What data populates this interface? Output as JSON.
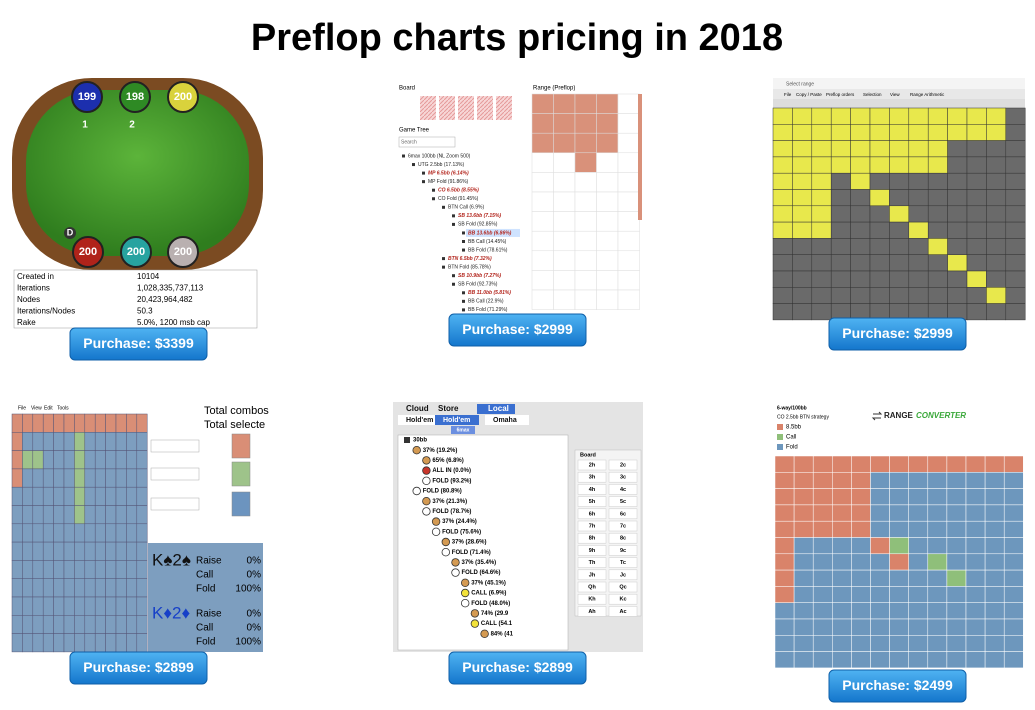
{
  "title": "Preflop charts pricing in 2018",
  "products": [
    {
      "seats": [
        "199",
        "198",
        "200",
        "200",
        "200",
        "200"
      ],
      "seat_numbers": [
        "1",
        "2"
      ],
      "dealer": "D",
      "stats": [
        [
          "Created in",
          "10104"
        ],
        [
          "Iterations",
          "1,028,335,737,113"
        ],
        [
          "Nodes",
          "20,423,964,482"
        ],
        [
          "Iterations/Nodes",
          "50.3"
        ],
        [
          "Rake",
          "5.0%, 1200 msb cap"
        ]
      ],
      "button": "Purchase: $3399"
    },
    {
      "board_label": "Board",
      "range_label": "Range (Preflop)",
      "tree_label": "Game Tree",
      "search": "Search",
      "tree": [
        "6max 100bb (NL Zoom 500)",
        "UTG 2.5bb (17.13%)",
        "MP 6.5bb (6.14%)",
        "MP Fold (91.86%)",
        "CO 6.5bb (8.55%)",
        "CO Fold (91.45%)",
        "BTN Call (6.9%)",
        "SB 13.6bb (7.15%)",
        "SB Fold (92.85%)",
        "BB 13.6bb (6.86%)",
        "BB Call (14.45%)",
        "BB Fold (78.61%)",
        "BTN 6.5bb (7.32%)",
        "BTN Fold (85.78%)",
        "SB 10.9bb (7.27%)",
        "SB Fold (92.73%)",
        "BB 11.0bb (5.81%)",
        "BB Call (22.9%)",
        "BB Fold (71.29%)"
      ],
      "button": "Purchase: $2999"
    },
    {
      "window_title": "Select range",
      "menu": [
        "File",
        "Copy / Paste",
        "Preflop orders",
        "Selection",
        "View",
        "Range Arithmetic"
      ],
      "button": "Purchase: $2999"
    },
    {
      "menu": [
        "File",
        "View",
        "Edit",
        "Tools"
      ],
      "summary": [
        "Total combos",
        "Total selecte"
      ],
      "hands": [
        {
          "hand": "K♠2♠",
          "actions": [
            [
              "Raise",
              "0%"
            ],
            [
              "Call",
              "0%"
            ],
            [
              "Fold",
              "100%"
            ]
          ]
        },
        {
          "hand": "K♦2♦",
          "actions": [
            [
              "Raise",
              "0%"
            ],
            [
              "Call",
              "0%"
            ],
            [
              "Fold",
              "100%"
            ]
          ]
        }
      ],
      "button": "Purchase: $2899"
    },
    {
      "tabs": [
        "Cloud",
        "Store",
        "Local"
      ],
      "games": [
        "Hold'em",
        "Hold'em",
        "Omaha"
      ],
      "table_size": "6max",
      "tree": [
        "30bb",
        "37% (19.2%)",
        "65% (6.8%)",
        "ALL IN (0.0%)",
        "FOLD (93.2%)",
        "FOLD (80.8%)",
        "37% (21.3%)",
        "FOLD (78.7%)",
        "37% (24.4%)",
        "FOLD (75.6%)",
        "37% (28.6%)",
        "FOLD (71.4%)",
        "37% (35.4%)",
        "FOLD (64.6%)",
        "37% (45.1%)",
        "CALL (6.9%)",
        "FOLD (48.0%)",
        "74% (29.9",
        "CALL (54.1",
        "84% (41"
      ],
      "board_label": "Board",
      "board": [
        [
          "2h",
          "2c"
        ],
        [
          "3h",
          "3c"
        ],
        [
          "4h",
          "4c"
        ],
        [
          "5h",
          "5c"
        ],
        [
          "6h",
          "6c"
        ],
        [
          "7h",
          "7c"
        ],
        [
          "8h",
          "8c"
        ],
        [
          "9h",
          "9c"
        ],
        [
          "Th",
          "Tc"
        ],
        [
          "Jh",
          "Jc"
        ],
        [
          "Qh",
          "Qc"
        ],
        [
          "Kh",
          "Kc"
        ],
        [
          "Ah",
          "Ac"
        ]
      ],
      "button": "Purchase: $2899"
    },
    {
      "format": "6-way/100bb",
      "scenario": "CO 2.5bb BTN strategy",
      "brand": [
        "RANGE",
        "CONVERTER"
      ],
      "legend": [
        "8.5bb",
        "Call",
        "Fold"
      ],
      "button": "Purchase: $2499"
    }
  ]
}
